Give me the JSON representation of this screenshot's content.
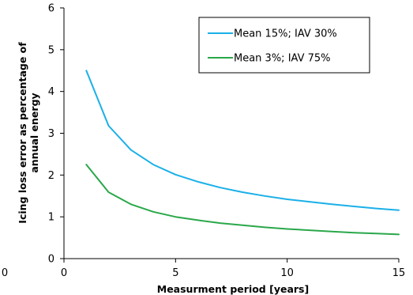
{
  "chart_data": {
    "type": "line",
    "title": "",
    "xlabel": "Measurment period [years]",
    "ylabel_lines": [
      "Icing loss error as percentage of",
      "annual energy"
    ],
    "xlim": [
      0,
      15
    ],
    "ylim": [
      0,
      6
    ],
    "x_ticks": [
      "0",
      "5",
      "10",
      "15"
    ],
    "y_ticks": [
      "0",
      "1",
      "2",
      "3",
      "4",
      "5",
      "6"
    ],
    "stray_label": "0",
    "grid": false,
    "legend_position": "top-right",
    "x": [
      1,
      2,
      3,
      4,
      5,
      6,
      7,
      8,
      9,
      10,
      11,
      12,
      13,
      14,
      15
    ],
    "series": [
      {
        "name": "Mean 15%; IAV 30%",
        "color": "#1ab0e8",
        "values": [
          4.5,
          3.18,
          2.6,
          2.25,
          2.01,
          1.84,
          1.7,
          1.59,
          1.5,
          1.42,
          1.36,
          1.3,
          1.25,
          1.2,
          1.16
        ]
      },
      {
        "name": "Mean 3%; IAV 75%",
        "color": "#2aa84a",
        "values": [
          2.25,
          1.59,
          1.3,
          1.12,
          1.0,
          0.92,
          0.85,
          0.8,
          0.75,
          0.71,
          0.68,
          0.65,
          0.62,
          0.6,
          0.58
        ]
      }
    ]
  }
}
